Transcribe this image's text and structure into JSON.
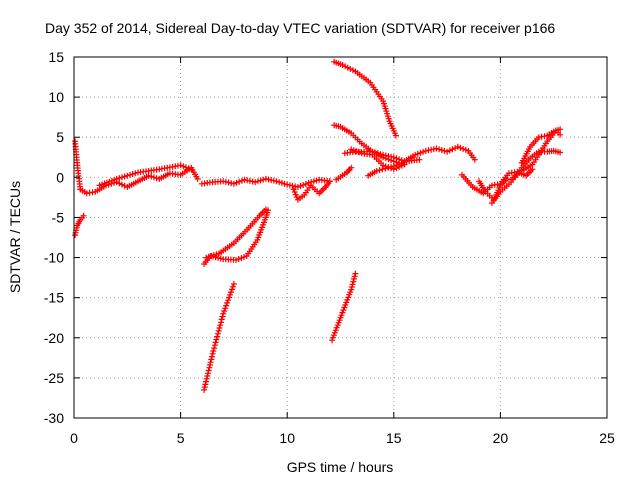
{
  "chart_data": {
    "type": "scatter",
    "title": "Day 352 of 2014, Sidereal Day-to-day VTEC variation (SDTVAR) for receiver p166",
    "xlabel": "GPS time / hours",
    "ylabel": "SDTVAR / TECUs",
    "xlim": [
      0,
      25
    ],
    "ylim": [
      -30,
      15
    ],
    "xticks": [
      0,
      5,
      10,
      15,
      20,
      25
    ],
    "yticks": [
      -30,
      -25,
      -20,
      -15,
      -10,
      -5,
      0,
      5,
      10,
      15
    ],
    "grid": true,
    "marker": "plus",
    "color": "#ff0000",
    "segments": [
      {
        "x": [
          0.05,
          0.12,
          0.2,
          0.3
        ],
        "y": [
          4.5,
          2.5,
          0.5,
          -1.5
        ]
      },
      {
        "x": [
          0.05,
          0.15,
          0.3,
          0.45
        ],
        "y": [
          -7.2,
          -6.0,
          -5.3,
          -4.8
        ]
      },
      {
        "x": [
          0.3,
          0.6,
          1.0,
          1.5,
          2.0,
          2.5,
          3.0,
          3.5,
          4.0,
          4.5,
          5.0,
          5.5,
          5.8
        ],
        "y": [
          -1.5,
          -2.0,
          -1.8,
          -1.0,
          -0.6,
          -1.2,
          -0.5,
          0.2,
          -0.2,
          0.5,
          0.3,
          1.2,
          -0.2
        ]
      },
      {
        "x": [
          1.2,
          2.0,
          3.0,
          4.0,
          5.0,
          5.5
        ],
        "y": [
          -1.0,
          -0.2,
          0.6,
          1.0,
          1.5,
          1.0
        ]
      },
      {
        "x": [
          6.0,
          6.5,
          7.0,
          7.5,
          8.0,
          8.5,
          9.0,
          9.5,
          10.0,
          10.5,
          11.0,
          11.5,
          12.0
        ],
        "y": [
          -0.8,
          -0.6,
          -0.5,
          -0.8,
          -0.3,
          -0.6,
          -0.2,
          -0.5,
          -0.9,
          -1.2,
          -0.7,
          -0.3,
          -0.5
        ]
      },
      {
        "x": [
          10.3,
          10.5,
          10.8,
          11.1,
          11.5,
          11.8,
          12.0
        ],
        "y": [
          -1.5,
          -2.8,
          -2.2,
          -1.0,
          -2.0,
          -1.2,
          -0.5
        ]
      },
      {
        "x": [
          6.1,
          6.4,
          7.0,
          7.6,
          8.1,
          8.6,
          9.0,
          9.1
        ],
        "y": [
          -10.8,
          -9.8,
          -10.2,
          -10.3,
          -9.8,
          -7.8,
          -5.0,
          -4.1
        ]
      },
      {
        "x": [
          6.2,
          6.8,
          7.5,
          8.2,
          8.7,
          9.0
        ],
        "y": [
          -10.0,
          -9.5,
          -8.2,
          -6.3,
          -4.8,
          -4.0
        ]
      },
      {
        "x": [
          6.1,
          6.5,
          7.0,
          7.5
        ],
        "y": [
          -26.5,
          -22.0,
          -17.0,
          -13.3
        ]
      },
      {
        "x": [
          12.1,
          12.5,
          13.0,
          13.2
        ],
        "y": [
          -20.3,
          -17.5,
          -14.0,
          -12.0
        ]
      },
      {
        "x": [
          12.2,
          12.6,
          13.2,
          13.9,
          14.5,
          14.8,
          15.1
        ],
        "y": [
          14.4,
          14.0,
          13.2,
          11.8,
          9.5,
          7.0,
          5.2
        ]
      },
      {
        "x": [
          12.2,
          12.5,
          13.0,
          13.5,
          14.0,
          14.5,
          15.0,
          15.5
        ],
        "y": [
          6.5,
          6.3,
          5.5,
          4.2,
          3.2,
          2.5,
          2.0,
          1.6
        ]
      },
      {
        "x": [
          12.7,
          13.2,
          14.0,
          14.5,
          15.0,
          15.5,
          16.0,
          16.5,
          17.0,
          17.5,
          18.0,
          18.5,
          18.8
        ],
        "y": [
          3.0,
          3.2,
          3.2,
          2.8,
          2.5,
          2.0,
          2.8,
          3.3,
          3.6,
          3.2,
          3.8,
          3.3,
          2.2
        ]
      },
      {
        "x": [
          13.0,
          13.5,
          14.0,
          14.5,
          15.0,
          15.5
        ],
        "y": [
          3.5,
          3.0,
          2.8,
          1.5,
          1.0,
          1.6
        ]
      },
      {
        "x": [
          12.3,
          12.8,
          13.0
        ],
        "y": [
          -0.3,
          0.6,
          1.2
        ]
      },
      {
        "x": [
          13.8,
          14.2,
          15.0,
          15.6,
          16.2
        ],
        "y": [
          0.2,
          0.8,
          1.4,
          2.0,
          2.2
        ]
      },
      {
        "x": [
          18.2,
          18.7,
          19.2,
          19.6,
          20.0,
          20.4,
          20.8,
          21.2,
          21.5
        ],
        "y": [
          0.3,
          -1.2,
          -2.0,
          -1.0,
          -0.8,
          0.5,
          0.7,
          0.2,
          1.0
        ]
      },
      {
        "x": [
          19.0,
          19.3,
          19.7,
          20.0,
          20.3
        ],
        "y": [
          -0.5,
          -1.8,
          -2.8,
          -1.0,
          -0.2
        ]
      },
      {
        "x": [
          19.6,
          20.0,
          20.5,
          21.0,
          21.4,
          21.8,
          22.2,
          22.5,
          22.8
        ],
        "y": [
          -3.2,
          -1.8,
          -0.6,
          1.2,
          2.4,
          3.2,
          3.2,
          3.3,
          3.1
        ]
      },
      {
        "x": [
          20.5,
          21.0,
          21.5,
          21.8,
          22.2,
          22.6,
          22.8
        ],
        "y": [
          -0.3,
          0.8,
          1.6,
          2.8,
          4.5,
          5.8,
          5.3
        ]
      },
      {
        "x": [
          21.0,
          21.4,
          21.8,
          22.2,
          22.5,
          22.8
        ],
        "y": [
          1.8,
          3.8,
          5.0,
          5.2,
          5.7,
          6.0
        ]
      }
    ]
  }
}
